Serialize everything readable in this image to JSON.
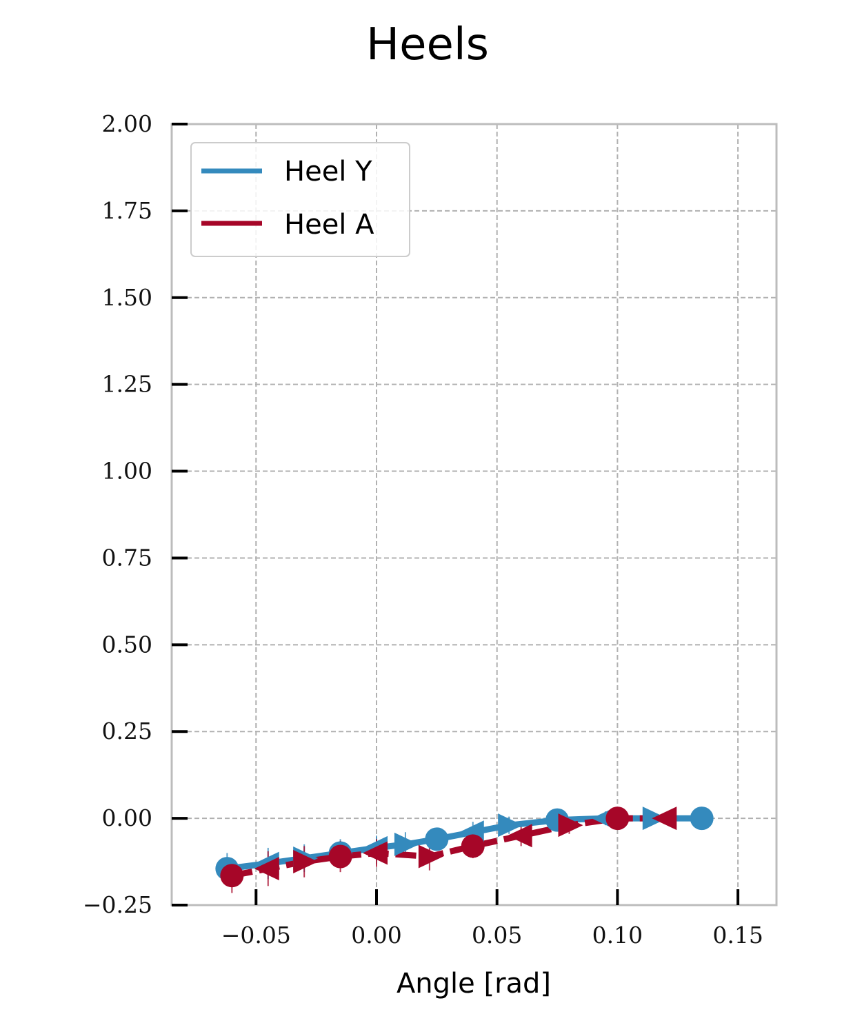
{
  "chart_data": {
    "type": "line",
    "title": "Heels",
    "xlabel": "Angle [rad]",
    "ylabel": "",
    "xlim": [
      -0.085,
      0.166
    ],
    "ylim": [
      -0.25,
      2.0
    ],
    "xticks": [
      -0.05,
      0.0,
      0.05,
      0.1,
      0.15
    ],
    "xtick_labels": [
      "−0.05",
      "0.00",
      "0.05",
      "0.10",
      "0.15"
    ],
    "yticks": [
      -0.25,
      0.0,
      0.25,
      0.5,
      0.75,
      1.0,
      1.25,
      1.5,
      1.75,
      2.0
    ],
    "ytick_labels": [
      "−0.25",
      "0.00",
      "0.25",
      "0.50",
      "0.75",
      "1.00",
      "1.25",
      "1.50",
      "1.75",
      "2.00"
    ],
    "grid": true,
    "legend_position": "upper-left",
    "colors": {
      "heel_y": "#348abd",
      "heel_a": "#a60628",
      "grid": "#b0b0b0",
      "frame": "#bcbcbc"
    },
    "series": [
      {
        "name": "Heel Y",
        "color": "#348abd",
        "x": [
          -0.062,
          -0.045,
          -0.03,
          -0.015,
          0.0,
          0.012,
          0.025,
          0.04,
          0.055,
          0.075,
          0.095,
          0.115,
          0.135
        ],
        "y": [
          -0.145,
          -0.13,
          -0.115,
          -0.1,
          -0.085,
          -0.075,
          -0.06,
          -0.04,
          -0.02,
          -0.005,
          0.0,
          0.0,
          0.0
        ],
        "error": [
          0.045,
          0.045,
          0.04,
          0.04,
          0.035,
          0.035,
          0.03,
          0.03,
          0.025,
          0.02,
          0.02,
          0.015,
          0.01
        ]
      },
      {
        "name": "Heel A",
        "color": "#a60628",
        "x": [
          -0.06,
          -0.045,
          -0.03,
          -0.015,
          0.0,
          0.022,
          0.04,
          0.06,
          0.08,
          0.1,
          0.12
        ],
        "y": [
          -0.165,
          -0.145,
          -0.125,
          -0.11,
          -0.1,
          -0.11,
          -0.08,
          -0.05,
          -0.02,
          0.0,
          0.0
        ],
        "error": [
          0.05,
          0.05,
          0.045,
          0.045,
          0.04,
          0.04,
          0.035,
          0.03,
          0.025,
          0.02,
          0.015
        ]
      }
    ]
  }
}
